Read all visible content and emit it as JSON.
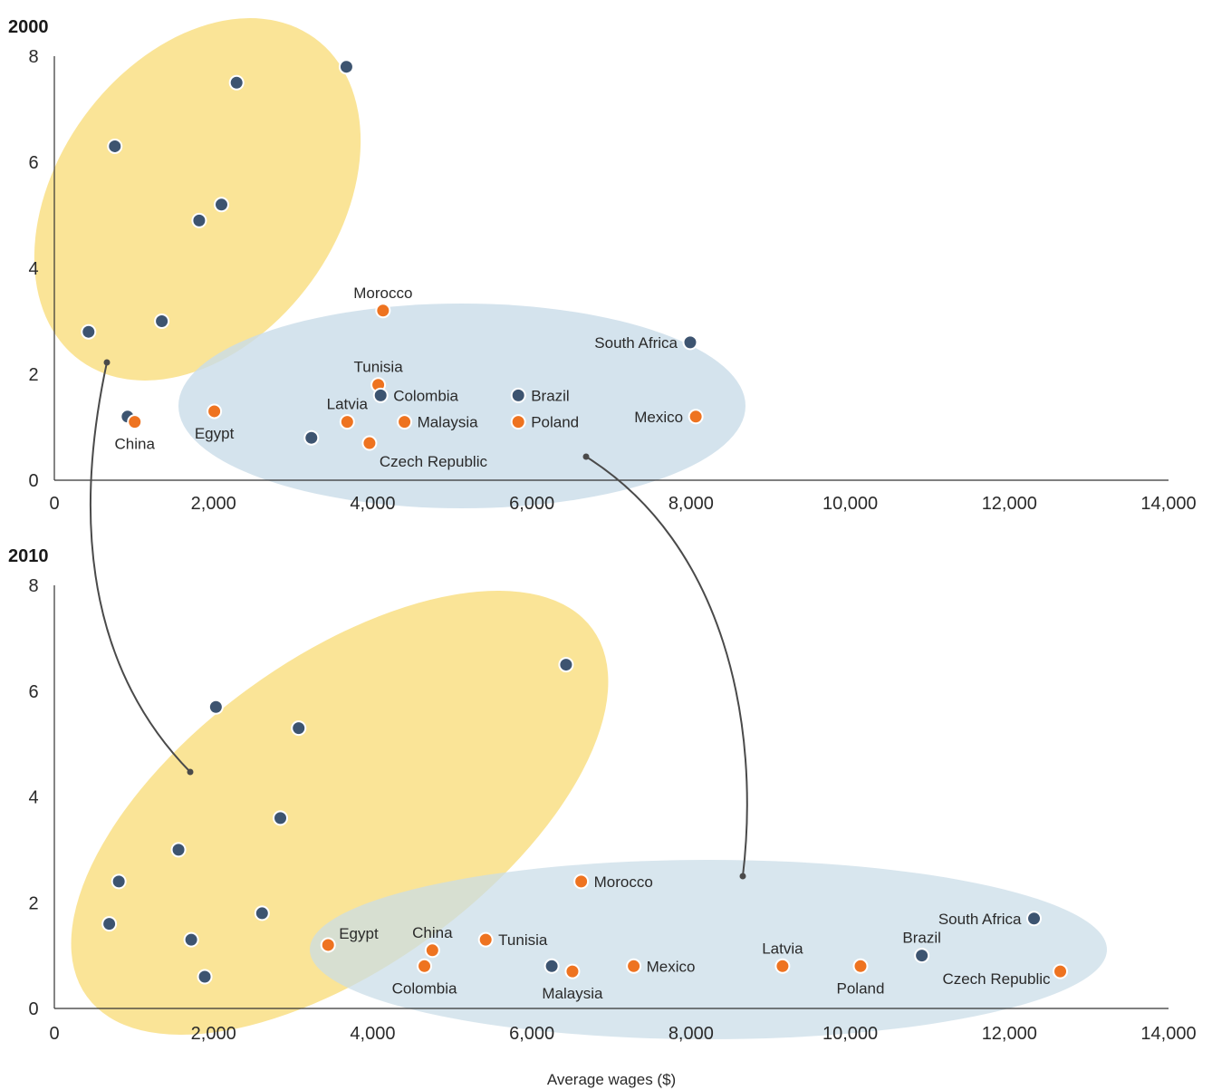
{
  "chart_data": [
    {
      "type": "scatter",
      "title": "2000",
      "xlim": [
        0,
        14000
      ],
      "ylim": [
        0,
        8
      ],
      "xticks": [
        "0",
        "2,000",
        "4,000",
        "6,000",
        "8,000",
        "10,000",
        "12,000",
        "14,000"
      ],
      "yticks": [
        "0",
        "2",
        "4",
        "6",
        "8"
      ],
      "grid": false,
      "colors": {
        "navy": "#3d5470",
        "orange": "#ee7320",
        "yellow": "#f9dc7a",
        "blue": "#c9dce8"
      },
      "points": [
        {
          "x": 430,
          "y": 2.8,
          "color": "navy",
          "label": ""
        },
        {
          "x": 760,
          "y": 6.3,
          "color": "navy",
          "label": ""
        },
        {
          "x": 1350,
          "y": 3.0,
          "color": "navy",
          "label": ""
        },
        {
          "x": 1820,
          "y": 4.9,
          "color": "navy",
          "label": ""
        },
        {
          "x": 2100,
          "y": 5.2,
          "color": "navy",
          "label": ""
        },
        {
          "x": 2290,
          "y": 7.5,
          "color": "navy",
          "label": ""
        },
        {
          "x": 3670,
          "y": 7.8,
          "color": "navy",
          "label": ""
        },
        {
          "x": 920,
          "y": 1.2,
          "color": "navy",
          "label": ""
        },
        {
          "x": 3230,
          "y": 0.8,
          "color": "navy",
          "label": ""
        },
        {
          "x": 1010,
          "y": 1.1,
          "color": "orange",
          "label": "China",
          "pos": "below"
        },
        {
          "x": 2010,
          "y": 1.3,
          "color": "orange",
          "label": "Egypt",
          "pos": "below"
        },
        {
          "x": 4130,
          "y": 3.2,
          "color": "orange",
          "label": "Morocco",
          "pos": "above"
        },
        {
          "x": 4070,
          "y": 1.8,
          "color": "orange",
          "label": "Tunisia",
          "pos": "above"
        },
        {
          "x": 4100,
          "y": 1.6,
          "color": "navy",
          "label": "Colombia",
          "pos": "right"
        },
        {
          "x": 3680,
          "y": 1.1,
          "color": "orange",
          "label": "Latvia",
          "pos": "above"
        },
        {
          "x": 4400,
          "y": 1.1,
          "color": "orange",
          "label": "Malaysia",
          "pos": "right"
        },
        {
          "x": 3960,
          "y": 0.7,
          "color": "orange",
          "label": "Czech Republic",
          "pos": "below-right"
        },
        {
          "x": 5830,
          "y": 1.6,
          "color": "navy",
          "label": "Brazil",
          "pos": "right"
        },
        {
          "x": 5830,
          "y": 1.1,
          "color": "orange",
          "label": "Poland",
          "pos": "right"
        },
        {
          "x": 7990,
          "y": 2.6,
          "color": "navy",
          "label": "South Africa",
          "pos": "left"
        },
        {
          "x": 8060,
          "y": 1.2,
          "color": "orange",
          "label": "Mexico",
          "pos": "left"
        }
      ]
    },
    {
      "type": "scatter",
      "title": "2010",
      "xlabel": "Average wages ($)",
      "xlim": [
        0,
        14000
      ],
      "ylim": [
        0,
        8
      ],
      "xticks": [
        "0",
        "2,000",
        "4,000",
        "6,000",
        "8,000",
        "10,000",
        "12,000",
        "14,000"
      ],
      "yticks": [
        "0",
        "2",
        "4",
        "6",
        "8"
      ],
      "grid": false,
      "colors": {
        "navy": "#3d5470",
        "orange": "#ee7320",
        "yellow": "#f9dc7a",
        "blue": "#c9dce8"
      },
      "points": [
        {
          "x": 690,
          "y": 1.6,
          "color": "navy",
          "label": ""
        },
        {
          "x": 810,
          "y": 2.4,
          "color": "navy",
          "label": ""
        },
        {
          "x": 1560,
          "y": 3.0,
          "color": "navy",
          "label": ""
        },
        {
          "x": 1720,
          "y": 1.3,
          "color": "navy",
          "label": ""
        },
        {
          "x": 1890,
          "y": 0.6,
          "color": "navy",
          "label": ""
        },
        {
          "x": 2030,
          "y": 5.7,
          "color": "navy",
          "label": ""
        },
        {
          "x": 2610,
          "y": 1.8,
          "color": "navy",
          "label": ""
        },
        {
          "x": 2840,
          "y": 3.6,
          "color": "navy",
          "label": ""
        },
        {
          "x": 3070,
          "y": 5.3,
          "color": "navy",
          "label": ""
        },
        {
          "x": 6430,
          "y": 6.5,
          "color": "navy",
          "label": ""
        },
        {
          "x": 6250,
          "y": 0.8,
          "color": "navy",
          "label": ""
        },
        {
          "x": 3440,
          "y": 1.2,
          "color": "orange",
          "label": "Egypt",
          "pos": "above-right"
        },
        {
          "x": 4750,
          "y": 1.1,
          "color": "orange",
          "label": "China",
          "pos": "above"
        },
        {
          "x": 4650,
          "y": 0.8,
          "color": "orange",
          "label": "Colombia",
          "pos": "below"
        },
        {
          "x": 5420,
          "y": 1.3,
          "color": "orange",
          "label": "Tunisia",
          "pos": "right"
        },
        {
          "x": 6510,
          "y": 0.7,
          "color": "orange",
          "label": "Malaysia",
          "pos": "below"
        },
        {
          "x": 6620,
          "y": 2.4,
          "color": "orange",
          "label": "Morocco",
          "pos": "right"
        },
        {
          "x": 7280,
          "y": 0.8,
          "color": "orange",
          "label": "Mexico",
          "pos": "right"
        },
        {
          "x": 9150,
          "y": 0.8,
          "color": "orange",
          "label": "Latvia",
          "pos": "above"
        },
        {
          "x": 10130,
          "y": 0.8,
          "color": "orange",
          "label": "Poland",
          "pos": "below"
        },
        {
          "x": 10900,
          "y": 1.0,
          "color": "navy",
          "label": "Brazil",
          "pos": "above"
        },
        {
          "x": 12310,
          "y": 1.7,
          "color": "navy",
          "label": "South Africa",
          "pos": "left"
        },
        {
          "x": 12640,
          "y": 0.7,
          "color": "orange",
          "label": "Czech Republic",
          "pos": "below-left"
        }
      ]
    }
  ]
}
